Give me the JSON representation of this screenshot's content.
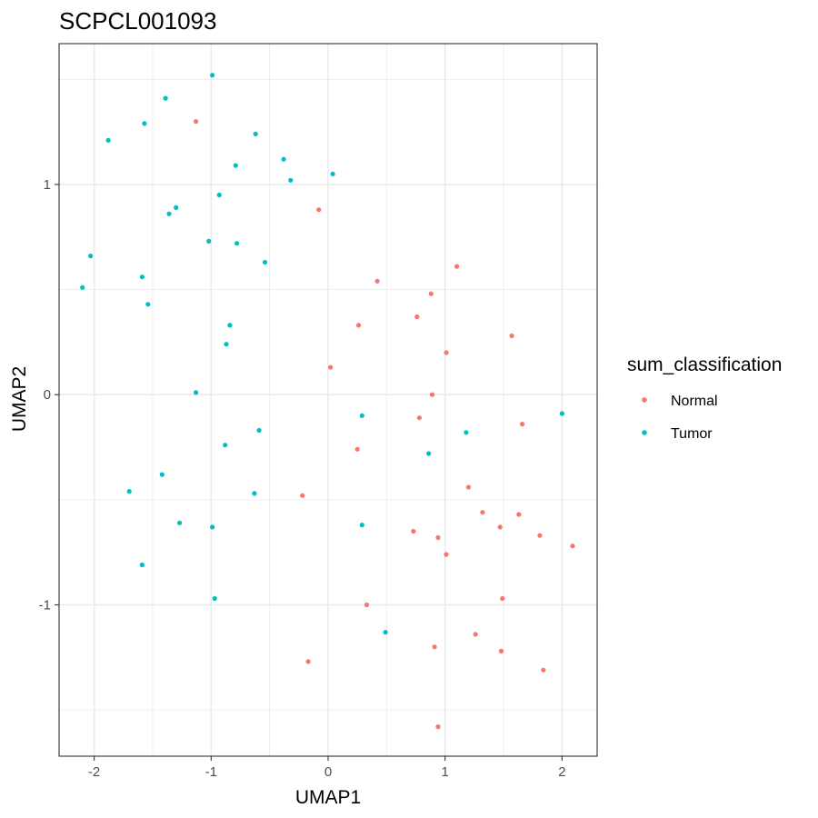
{
  "chart_data": {
    "type": "scatter",
    "title": "SCPCL001093",
    "xlabel": "UMAP1",
    "ylabel": "UMAP2",
    "xlim": [
      -2.3,
      2.3
    ],
    "ylim": [
      -1.72,
      1.67
    ],
    "x_ticks": [
      -2,
      -1,
      0,
      1,
      2
    ],
    "x_tick_labels": [
      "-2",
      "-1",
      "0",
      "1",
      "2"
    ],
    "y_ticks": [
      -1,
      0,
      1
    ],
    "y_tick_labels": [
      "-1",
      "0",
      "1"
    ],
    "grid": true,
    "legend": {
      "title": "sum_classification",
      "position": "right"
    },
    "series": [
      {
        "name": "Normal",
        "color": "#F8766D",
        "points": [
          [
            -1.13,
            1.3
          ],
          [
            -0.08,
            0.88
          ],
          [
            1.1,
            0.61
          ],
          [
            0.42,
            0.54
          ],
          [
            0.88,
            0.48
          ],
          [
            0.76,
            0.37
          ],
          [
            0.26,
            0.33
          ],
          [
            1.57,
            0.28
          ],
          [
            1.01,
            0.2
          ],
          [
            0.02,
            0.13
          ],
          [
            0.89,
            0.0
          ],
          [
            0.78,
            -0.11
          ],
          [
            1.66,
            -0.14
          ],
          [
            0.25,
            -0.26
          ],
          [
            1.2,
            -0.44
          ],
          [
            -0.22,
            -0.48
          ],
          [
            1.32,
            -0.56
          ],
          [
            1.63,
            -0.57
          ],
          [
            1.47,
            -0.63
          ],
          [
            0.73,
            -0.65
          ],
          [
            1.81,
            -0.67
          ],
          [
            0.94,
            -0.68
          ],
          [
            2.09,
            -0.72
          ],
          [
            1.01,
            -0.76
          ],
          [
            0.33,
            -1.0
          ],
          [
            1.49,
            -0.97
          ],
          [
            1.26,
            -1.14
          ],
          [
            0.91,
            -1.2
          ],
          [
            1.48,
            -1.22
          ],
          [
            -0.17,
            -1.27
          ],
          [
            1.84,
            -1.31
          ],
          [
            0.94,
            -1.58
          ]
        ]
      },
      {
        "name": "Tumor",
        "color": "#00BFC4",
        "points": [
          [
            -0.99,
            1.52
          ],
          [
            -1.39,
            1.41
          ],
          [
            -1.57,
            1.29
          ],
          [
            -0.62,
            1.24
          ],
          [
            -1.88,
            1.21
          ],
          [
            -0.38,
            1.12
          ],
          [
            -0.79,
            1.09
          ],
          [
            0.04,
            1.05
          ],
          [
            -0.32,
            1.02
          ],
          [
            -0.93,
            0.95
          ],
          [
            -1.3,
            0.89
          ],
          [
            -1.36,
            0.86
          ],
          [
            -1.02,
            0.73
          ],
          [
            -0.78,
            0.72
          ],
          [
            -2.03,
            0.66
          ],
          [
            -0.54,
            0.63
          ],
          [
            -1.59,
            0.56
          ],
          [
            -2.1,
            0.51
          ],
          [
            -1.54,
            0.43
          ],
          [
            -0.84,
            0.33
          ],
          [
            -0.87,
            0.24
          ],
          [
            -1.13,
            0.01
          ],
          [
            0.29,
            -0.1
          ],
          [
            2.0,
            -0.09
          ],
          [
            -0.59,
            -0.17
          ],
          [
            1.18,
            -0.18
          ],
          [
            -0.88,
            -0.24
          ],
          [
            0.86,
            -0.28
          ],
          [
            -1.42,
            -0.38
          ],
          [
            -1.7,
            -0.46
          ],
          [
            -0.63,
            -0.47
          ],
          [
            -1.27,
            -0.61
          ],
          [
            0.29,
            -0.62
          ],
          [
            -0.99,
            -0.63
          ],
          [
            -1.59,
            -0.81
          ],
          [
            -0.97,
            -0.97
          ],
          [
            0.49,
            -1.13
          ]
        ]
      }
    ]
  }
}
